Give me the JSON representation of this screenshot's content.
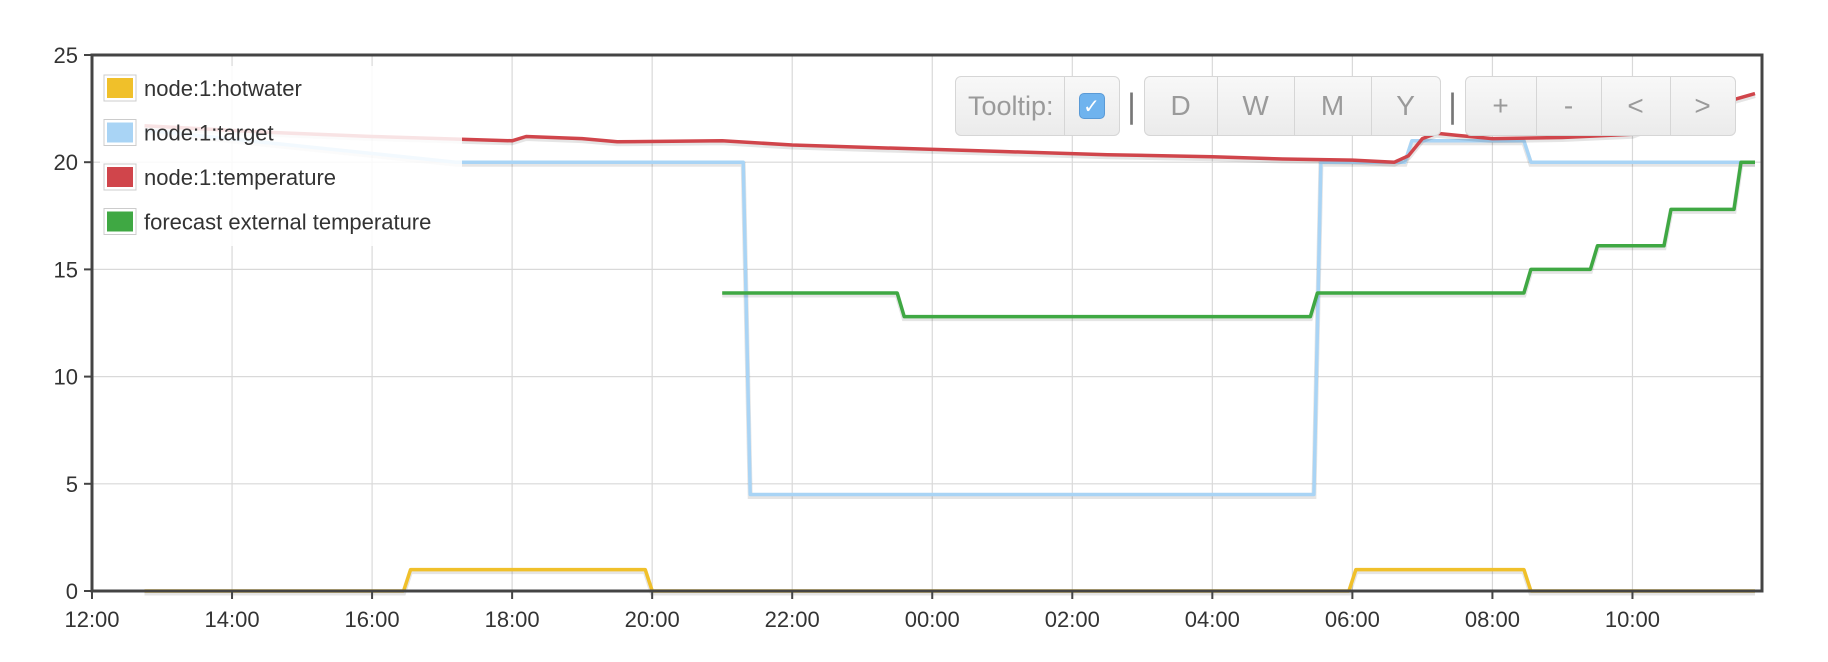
{
  "chart_data": {
    "type": "line",
    "x_unit": "hours",
    "ylim": [
      0,
      25
    ],
    "y_ticks": [
      "0",
      "5",
      "10",
      "15",
      "20",
      "25"
    ],
    "x_ticks": [
      {
        "h": 0,
        "label": "12:00"
      },
      {
        "h": 2,
        "label": "14:00"
      },
      {
        "h": 4,
        "label": "16:00"
      },
      {
        "h": 6,
        "label": "18:00"
      },
      {
        "h": 8,
        "label": "20:00"
      },
      {
        "h": 10,
        "label": "22:00"
      },
      {
        "h": 12,
        "label": "00:00"
      },
      {
        "h": 14,
        "label": "02:00"
      },
      {
        "h": 16,
        "label": "04:00"
      },
      {
        "h": 18,
        "label": "06:00"
      },
      {
        "h": 20,
        "label": "08:00"
      },
      {
        "h": 22,
        "label": "10:00"
      }
    ],
    "grid": true,
    "legend_position": "top-left",
    "series": [
      {
        "name": "node:1:hotwater",
        "color": "#f0c02a",
        "points": [
          [
            0.75,
            0
          ],
          [
            4.45,
            0
          ],
          [
            4.55,
            1
          ],
          [
            7.9,
            1
          ],
          [
            8.0,
            0
          ],
          [
            17.95,
            0
          ],
          [
            18.05,
            1
          ],
          [
            20.45,
            1
          ],
          [
            20.55,
            0
          ],
          [
            23.75,
            0
          ]
        ]
      },
      {
        "name": "node:1:target",
        "color": "#a9d4f5",
        "points": [
          [
            0.75,
            21.5
          ],
          [
            5.2,
            20
          ],
          [
            9.3,
            20
          ],
          [
            9.4,
            4.5
          ],
          [
            17.45,
            4.5
          ],
          [
            17.55,
            20
          ],
          [
            18.75,
            20
          ],
          [
            18.85,
            21
          ],
          [
            20.45,
            21
          ],
          [
            20.55,
            20
          ],
          [
            23.75,
            20
          ]
        ]
      },
      {
        "name": "node:1:temperature",
        "color": "#d0454b",
        "points": [
          [
            0.75,
            21.7
          ],
          [
            2.5,
            21.4
          ],
          [
            4.0,
            21.2
          ],
          [
            6.0,
            21.0
          ],
          [
            6.2,
            21.2
          ],
          [
            7.0,
            21.1
          ],
          [
            7.5,
            20.95
          ],
          [
            9.0,
            21.0
          ],
          [
            10.0,
            20.8
          ],
          [
            11.5,
            20.65
          ],
          [
            13.0,
            20.5
          ],
          [
            14.5,
            20.35
          ],
          [
            16.0,
            20.25
          ],
          [
            17.0,
            20.15
          ],
          [
            18.0,
            20.1
          ],
          [
            18.6,
            20.0
          ],
          [
            18.8,
            20.3
          ],
          [
            19.0,
            21.1
          ],
          [
            19.2,
            21.35
          ],
          [
            19.5,
            21.25
          ],
          [
            20.0,
            21.1
          ],
          [
            21.0,
            21.15
          ],
          [
            22.0,
            21.3
          ],
          [
            23.0,
            22.5
          ],
          [
            23.75,
            23.2
          ]
        ]
      },
      {
        "name": "forecast external temperature",
        "color": "#3fa843",
        "points": [
          [
            9.0,
            13.9
          ],
          [
            11.5,
            13.9
          ],
          [
            11.6,
            12.8
          ],
          [
            17.4,
            12.8
          ],
          [
            17.5,
            13.9
          ],
          [
            20.45,
            13.9
          ],
          [
            20.55,
            15.0
          ],
          [
            21.4,
            15.0
          ],
          [
            21.5,
            16.1
          ],
          [
            22.45,
            16.1
          ],
          [
            22.55,
            17.8
          ],
          [
            23.45,
            17.8
          ],
          [
            23.55,
            20.0
          ],
          [
            23.75,
            20.0
          ]
        ]
      }
    ]
  },
  "toolbar": {
    "tooltip_label": "Tooltip:",
    "tooltip_checked": true,
    "separator": "|",
    "range_buttons": [
      "D",
      "W",
      "M",
      "Y"
    ],
    "nav_buttons": [
      "+",
      "-",
      "<",
      ">"
    ]
  }
}
